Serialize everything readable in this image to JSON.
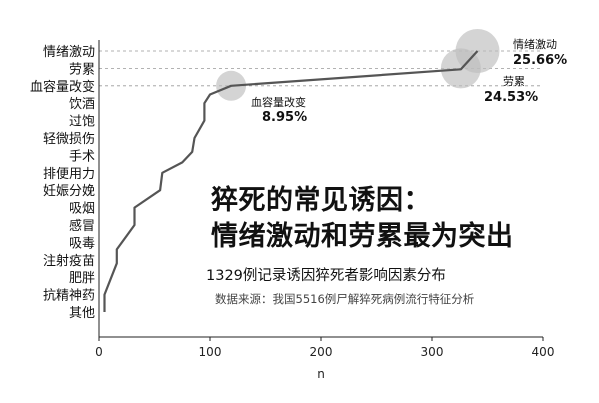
{
  "headline": {
    "line1": "猝死的常见诱因：",
    "line2": "情绪激动和劳累最为突出"
  },
  "subtitle": "1329例记录诱因猝死者影响因素分布",
  "source": "数据来源：我国5516例尸解猝死病例流行特征分析",
  "chart_data": {
    "type": "line",
    "categories": [
      "情绪激动",
      "劳累",
      "血容量改变",
      "饮酒",
      "过饱",
      "轻微损伤",
      "手术",
      "排便用力",
      "妊娠分娩",
      "吸烟",
      "感冒",
      "吸毒",
      "注射疫苗",
      "肥胖",
      "抗精神药",
      "其他"
    ],
    "x_ticks": [
      0,
      100,
      200,
      300,
      400
    ],
    "xlim": [
      0,
      400
    ],
    "xlabel": "n",
    "ylabel": "",
    "points": [
      {
        "x": 5,
        "cat": 15.0
      },
      {
        "x": 5,
        "cat": 14.0
      },
      {
        "x": 16,
        "cat": 12.2
      },
      {
        "x": 16,
        "cat": 11.4
      },
      {
        "x": 32,
        "cat": 10.0
      },
      {
        "x": 32,
        "cat": 9.0
      },
      {
        "x": 55,
        "cat": 8.0
      },
      {
        "x": 57,
        "cat": 7.0
      },
      {
        "x": 75,
        "cat": 6.4
      },
      {
        "x": 84,
        "cat": 5.8
      },
      {
        "x": 86,
        "cat": 5.0
      },
      {
        "x": 95,
        "cat": 4.0
      },
      {
        "x": 95,
        "cat": 3.0
      },
      {
        "x": 100,
        "cat": 2.5
      },
      {
        "x": 119,
        "cat": 2.0
      },
      {
        "x": 326,
        "cat": 1.05
      },
      {
        "x": 341,
        "cat": 0.0
      }
    ],
    "annotations": [
      {
        "name": "情绪激动",
        "value": "25.66%",
        "x": 341,
        "cat": 0
      },
      {
        "name": "劳累",
        "value": "24.53%",
        "x": 326,
        "cat": 1
      },
      {
        "name": "血容量改变",
        "value": "8.95%",
        "x": 119,
        "cat": 2
      }
    ],
    "grid": "dashed-top-three",
    "colors": {
      "line": "#555555",
      "bubble": "#bdbdbd",
      "axis": "#222222"
    }
  }
}
